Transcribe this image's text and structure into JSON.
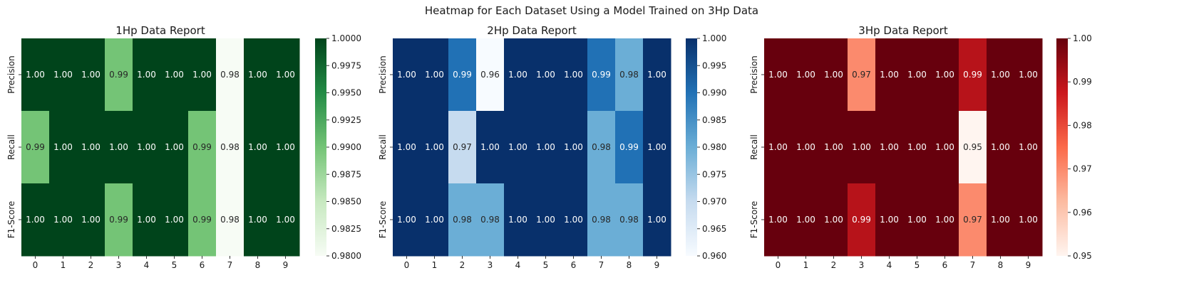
{
  "suptitle": "Heatmap for Each Dataset Using a Model Trained on 3Hp Data",
  "chart_data": [
    {
      "type": "heatmap",
      "title": "1Hp Data Report",
      "colormap": "Greens",
      "colors": [
        "#f7fcf5",
        "#c7e9c0",
        "#74c476",
        "#238b45",
        "#00441b"
      ],
      "rows": [
        "Precision",
        "Recall",
        "F1-Score"
      ],
      "columns": [
        "0",
        "1",
        "2",
        "3",
        "4",
        "5",
        "6",
        "7",
        "8",
        "9"
      ],
      "values": [
        [
          1.0,
          1.0,
          1.0,
          0.99,
          1.0,
          1.0,
          1.0,
          0.98,
          1.0,
          1.0
        ],
        [
          0.99,
          1.0,
          1.0,
          1.0,
          1.0,
          1.0,
          0.99,
          0.98,
          1.0,
          1.0
        ],
        [
          1.0,
          1.0,
          1.0,
          0.99,
          1.0,
          1.0,
          0.99,
          0.98,
          1.0,
          1.0
        ]
      ],
      "vmin": 0.98,
      "vmax": 1.0,
      "colorbar_ticks": [
        "0.9800",
        "0.9825",
        "0.9850",
        "0.9875",
        "0.9900",
        "0.9925",
        "0.9950",
        "0.9975",
        "1.0000"
      ]
    },
    {
      "type": "heatmap",
      "title": "2Hp Data Report",
      "colormap": "Blues",
      "colors": [
        "#f7fbff",
        "#c6dbef",
        "#6baed6",
        "#2171b5",
        "#08306b"
      ],
      "rows": [
        "Precision",
        "Recall",
        "F1-Score"
      ],
      "columns": [
        "0",
        "1",
        "2",
        "3",
        "4",
        "5",
        "6",
        "7",
        "8",
        "9"
      ],
      "values": [
        [
          1.0,
          1.0,
          0.99,
          0.96,
          1.0,
          1.0,
          1.0,
          0.99,
          0.98,
          1.0
        ],
        [
          1.0,
          1.0,
          0.97,
          1.0,
          1.0,
          1.0,
          1.0,
          0.98,
          0.99,
          1.0
        ],
        [
          1.0,
          1.0,
          0.98,
          0.98,
          1.0,
          1.0,
          1.0,
          0.98,
          0.98,
          1.0
        ]
      ],
      "vmin": 0.96,
      "vmax": 1.0,
      "colorbar_ticks": [
        "0.960",
        "0.965",
        "0.970",
        "0.975",
        "0.980",
        "0.985",
        "0.990",
        "0.995",
        "1.000"
      ]
    },
    {
      "type": "heatmap",
      "title": "3Hp Data Report",
      "colormap": "Reds",
      "colors": [
        "#fff5f0",
        "#fcbba1",
        "#fb6a4a",
        "#cb181d",
        "#67000d"
      ],
      "rows": [
        "Precision",
        "Recall",
        "F1-Score"
      ],
      "columns": [
        "0",
        "1",
        "2",
        "3",
        "4",
        "5",
        "6",
        "7",
        "8",
        "9"
      ],
      "values": [
        [
          1.0,
          1.0,
          1.0,
          0.97,
          1.0,
          1.0,
          1.0,
          0.99,
          1.0,
          1.0
        ],
        [
          1.0,
          1.0,
          1.0,
          1.0,
          1.0,
          1.0,
          1.0,
          0.95,
          1.0,
          1.0
        ],
        [
          1.0,
          1.0,
          1.0,
          0.99,
          1.0,
          1.0,
          1.0,
          0.97,
          1.0,
          1.0
        ]
      ],
      "vmin": 0.95,
      "vmax": 1.0,
      "colorbar_ticks": [
        "0.95",
        "0.96",
        "0.97",
        "0.98",
        "0.99",
        "1.00"
      ]
    }
  ]
}
